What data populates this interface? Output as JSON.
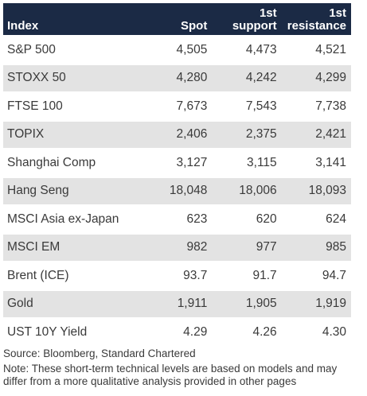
{
  "table": {
    "headers": {
      "index": "Index",
      "spot": "Spot",
      "support_1": "1st",
      "support_2": "support",
      "resistance_1": "1st",
      "resistance_2": "resistance"
    },
    "rows": [
      {
        "index": "S&P 500",
        "spot": "4,505",
        "support": "4,473",
        "resistance": "4,521"
      },
      {
        "index": "STOXX 50",
        "spot": "4,280",
        "support": "4,242",
        "resistance": "4,299"
      },
      {
        "index": "FTSE 100",
        "spot": "7,673",
        "support": "7,543",
        "resistance": "7,738"
      },
      {
        "index": "TOPIX",
        "spot": "2,406",
        "support": "2,375",
        "resistance": "2,421"
      },
      {
        "index": "Shanghai Comp",
        "spot": "3,127",
        "support": "3,115",
        "resistance": "3,141"
      },
      {
        "index": "Hang Seng",
        "spot": "18,048",
        "support": "18,006",
        "resistance": "18,093"
      },
      {
        "index": "MSCI Asia ex-Japan",
        "spot": "623",
        "support": "620",
        "resistance": "624"
      },
      {
        "index": "MSCI EM",
        "spot": "982",
        "support": "977",
        "resistance": "985"
      },
      {
        "index": "Brent (ICE)",
        "spot": "93.7",
        "support": "91.7",
        "resistance": "94.7"
      },
      {
        "index": "Gold",
        "spot": "1,911",
        "support": "1,905",
        "resistance": "1,919"
      },
      {
        "index": "UST 10Y Yield",
        "spot": "4.29",
        "support": "4.26",
        "resistance": "4.30"
      }
    ]
  },
  "footer": {
    "source": "Source: Bloomberg, Standard Chartered",
    "note_line1": "Note: These short-term technical levels are based on models and may",
    "note_line2": "differ from a more qualitative analysis provided in other pages"
  },
  "colors": {
    "header_bg": "#1b2a45",
    "header_text": "#ffffff",
    "row_alt_bg": "#e3e3e3",
    "body_text": "#3a3a3a"
  }
}
